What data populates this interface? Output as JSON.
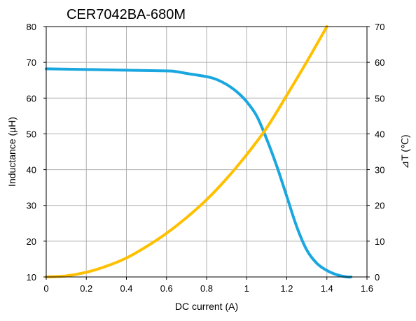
{
  "chart_data": {
    "type": "line",
    "title": "CER7042BA-680M",
    "xlabel": "DC current (A)",
    "ylabel_left": "Inductance (μH)",
    "ylabel_right": "⊿T (℃)",
    "xlim": [
      0,
      1.6
    ],
    "ylim_left": [
      10,
      80
    ],
    "ylim_right": [
      0,
      70
    ],
    "x_ticks": [
      "0",
      "0.2",
      "0.4",
      "0.6",
      "0.8",
      "1",
      "1.2",
      "1.4",
      "1.6"
    ],
    "y_left_ticks": [
      "10",
      "20",
      "30",
      "40",
      "50",
      "60",
      "70",
      "80"
    ],
    "y_right_ticks": [
      "0",
      "10",
      "20",
      "30",
      "40",
      "50",
      "60",
      "70"
    ],
    "grid": true,
    "series": [
      {
        "axis": "left",
        "color": "#1aa7e0",
        "x": [
          0,
          0.2,
          0.4,
          0.6,
          0.65,
          0.7,
          0.8,
          0.85,
          0.9,
          0.95,
          1.0,
          1.05,
          1.1,
          1.15,
          1.2,
          1.25,
          1.3,
          1.35,
          1.4,
          1.45,
          1.5,
          1.52
        ],
        "values": [
          68.2,
          68.0,
          67.8,
          67.6,
          67.4,
          66.9,
          66.0,
          65.2,
          63.8,
          61.8,
          59.0,
          55.0,
          48.5,
          41.0,
          32.5,
          24.0,
          17.5,
          13.8,
          11.8,
          10.6,
          10.0,
          10.0
        ]
      },
      {
        "axis": "right",
        "color": "#ffc000",
        "x": [
          0,
          0.1,
          0.2,
          0.3,
          0.4,
          0.5,
          0.6,
          0.7,
          0.8,
          0.9,
          1.0,
          1.1,
          1.2,
          1.3,
          1.4
        ],
        "values": [
          0,
          0.3,
          1.3,
          3.0,
          5.3,
          8.5,
          12.2,
          16.6,
          21.6,
          27.5,
          34.2,
          41.7,
          50.8,
          60.2,
          70.0
        ]
      }
    ]
  }
}
